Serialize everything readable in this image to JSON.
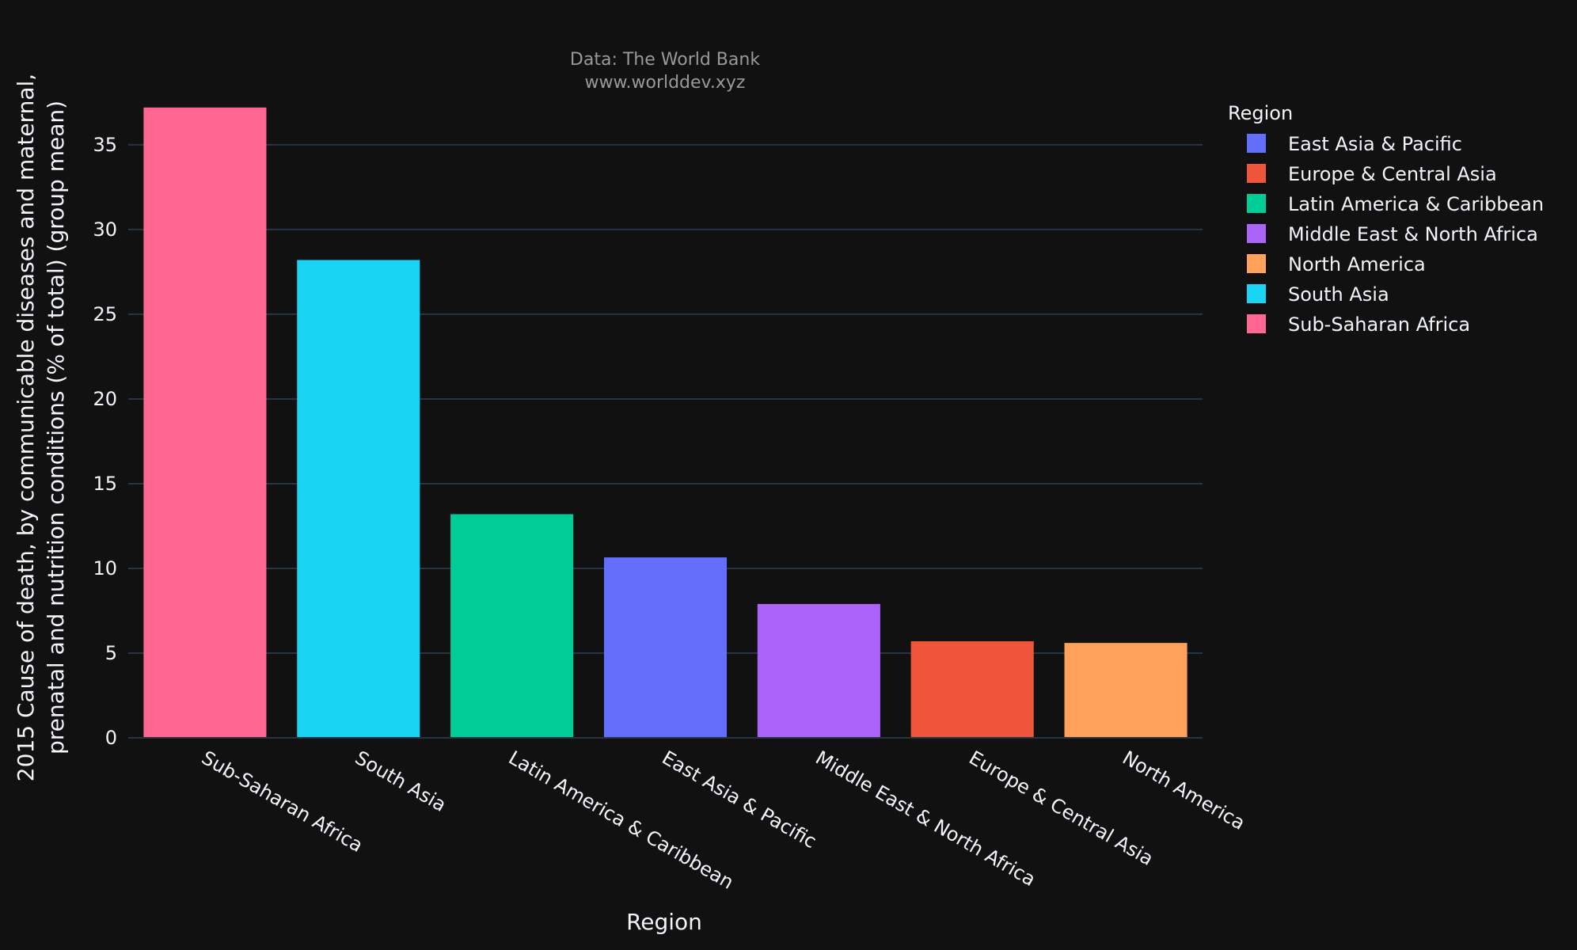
{
  "chart_data": {
    "type": "bar",
    "annotation": [
      "Data: The World Bank",
      "www.worlddev.xyz"
    ],
    "xlabel": "Region",
    "ylabel": [
      "2015 Cause of death, by communicable diseases and maternal,",
      "prenatal and nutrition conditions (% of total) (group mean)"
    ],
    "ylim": [
      0,
      38.5
    ],
    "yticks": [
      0,
      5,
      10,
      15,
      20,
      25,
      30,
      35
    ],
    "grid": true,
    "legend_position": "right",
    "categories": [
      "Sub-Saharan Africa",
      "South Asia",
      "Latin America & Caribbean",
      "East Asia & Pacific",
      "Middle East & North Africa",
      "Europe & Central Asia",
      "North America"
    ],
    "values": [
      37.2,
      28.2,
      13.2,
      10.65,
      7.9,
      5.7,
      5.6
    ],
    "bar_colors": [
      "#FF6692",
      "#19D3F3",
      "#00CC96",
      "#636EFA",
      "#AB63FA",
      "#EF553B",
      "#FFA15A"
    ],
    "legend": {
      "title": "Region",
      "items": [
        {
          "label": "East Asia & Pacific",
          "color": "#636EFA"
        },
        {
          "label": "Europe & Central Asia",
          "color": "#EF553B"
        },
        {
          "label": "Latin America & Caribbean",
          "color": "#00CC96"
        },
        {
          "label": "Middle East & North Africa",
          "color": "#AB63FA"
        },
        {
          "label": "North America",
          "color": "#FFA15A"
        },
        {
          "label": "South Asia",
          "color": "#19D3F3"
        },
        {
          "label": "Sub-Saharan Africa",
          "color": "#FF6692"
        }
      ]
    }
  }
}
